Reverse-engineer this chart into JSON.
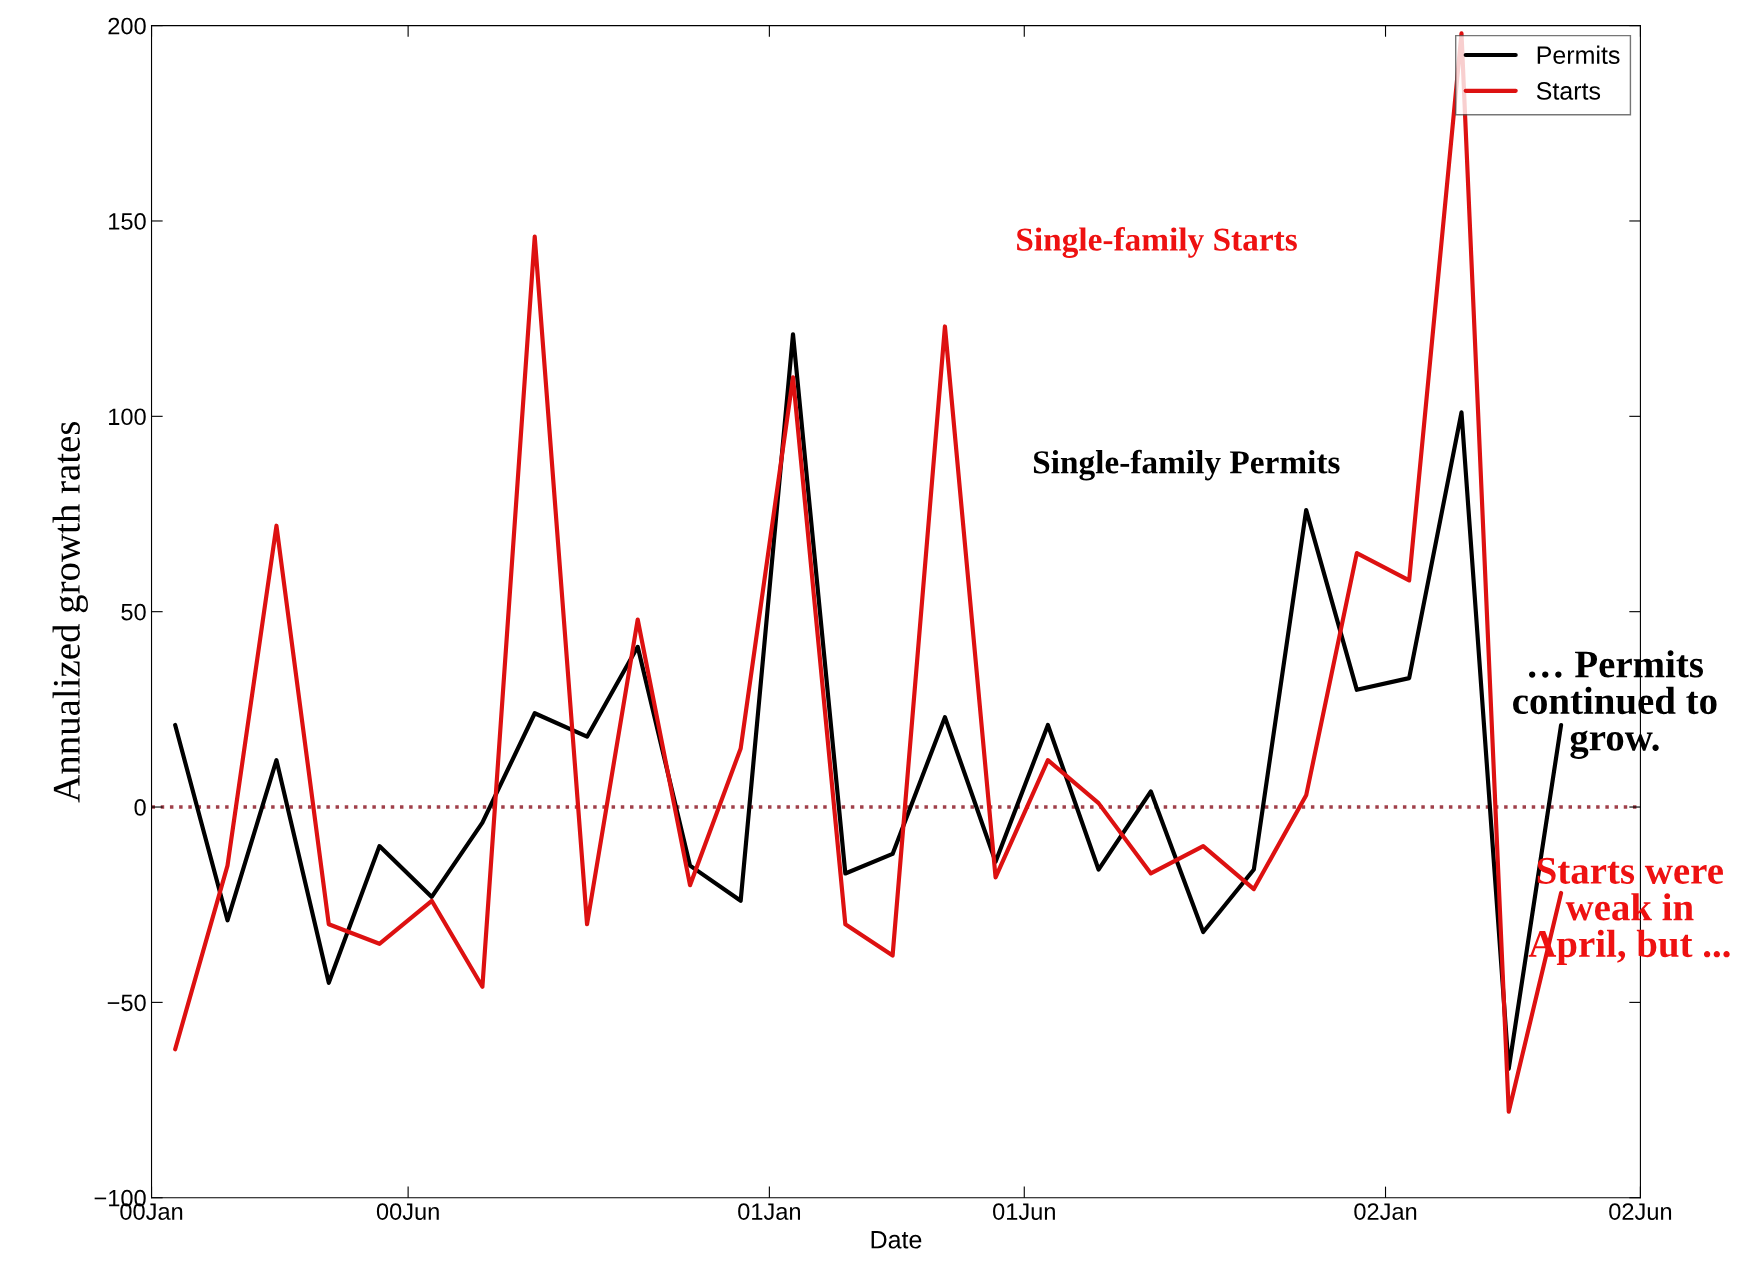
{
  "chart_data": {
    "type": "line",
    "xlabel": "Date",
    "ylabel": "Annualized growth rates",
    "x": [
      "2000-01-15",
      "2000-02-15",
      "2000-03-15",
      "2000-04-15",
      "2000-05-15",
      "2000-06-15",
      "2000-07-15",
      "2000-08-15",
      "2000-09-15",
      "2000-10-15",
      "2000-11-15",
      "2000-12-15",
      "2001-01-15",
      "2001-02-15",
      "2001-03-15",
      "2001-04-15",
      "2001-05-15",
      "2001-06-15",
      "2001-07-15",
      "2001-08-15",
      "2001-09-15",
      "2001-10-15",
      "2001-11-15",
      "2001-12-15",
      "2002-01-15",
      "2002-02-15",
      "2002-03-15",
      "2002-04-15"
    ],
    "series": [
      {
        "name": "Permits",
        "color": "#000000",
        "values": [
          21,
          -29,
          12,
          -45,
          -10,
          -23,
          -4,
          24,
          18,
          41,
          -15,
          -24,
          121,
          -17,
          -12,
          23,
          -14,
          21,
          -16,
          4,
          -32,
          -16,
          76,
          30,
          33,
          101,
          -67,
          21
        ]
      },
      {
        "name": "Starts",
        "color": "#dd1111",
        "values": [
          -62,
          -15,
          72,
          -30,
          -35,
          -24,
          -46,
          146,
          -30,
          48,
          -20,
          15,
          110,
          -30,
          -38,
          123,
          -18,
          12,
          1,
          -17,
          -10,
          -21,
          3,
          65,
          58,
          198,
          -78,
          -22
        ]
      }
    ],
    "xlim": [
      "2000-01-01",
      "2002-06-01"
    ],
    "xticks": [
      {
        "value": "2000-01-01",
        "label": "00Jan"
      },
      {
        "value": "2000-06-01",
        "label": "00Jun"
      },
      {
        "value": "2001-01-01",
        "label": "01Jan"
      },
      {
        "value": "2001-06-01",
        "label": "01Jun"
      },
      {
        "value": "2002-01-01",
        "label": "02Jan"
      },
      {
        "value": "2002-06-01",
        "label": "02Jun"
      }
    ],
    "ylim": [
      -100,
      200
    ],
    "yticks": [
      -100,
      -50,
      0,
      50,
      100,
      150,
      200
    ],
    "ref_lines": [
      {
        "axis": "y",
        "value": 0,
        "color": "#a0404a",
        "line_style": "dotted"
      }
    ],
    "annotations": [
      "Single-family Starts",
      "Single-family Permits",
      "… Permits\ncontinued to\ngrow.",
      "Starts were\nweak in\nApril, but ..."
    ],
    "legend": "top right",
    "grid": false,
    "line_style": "solid",
    "marker": "none"
  }
}
